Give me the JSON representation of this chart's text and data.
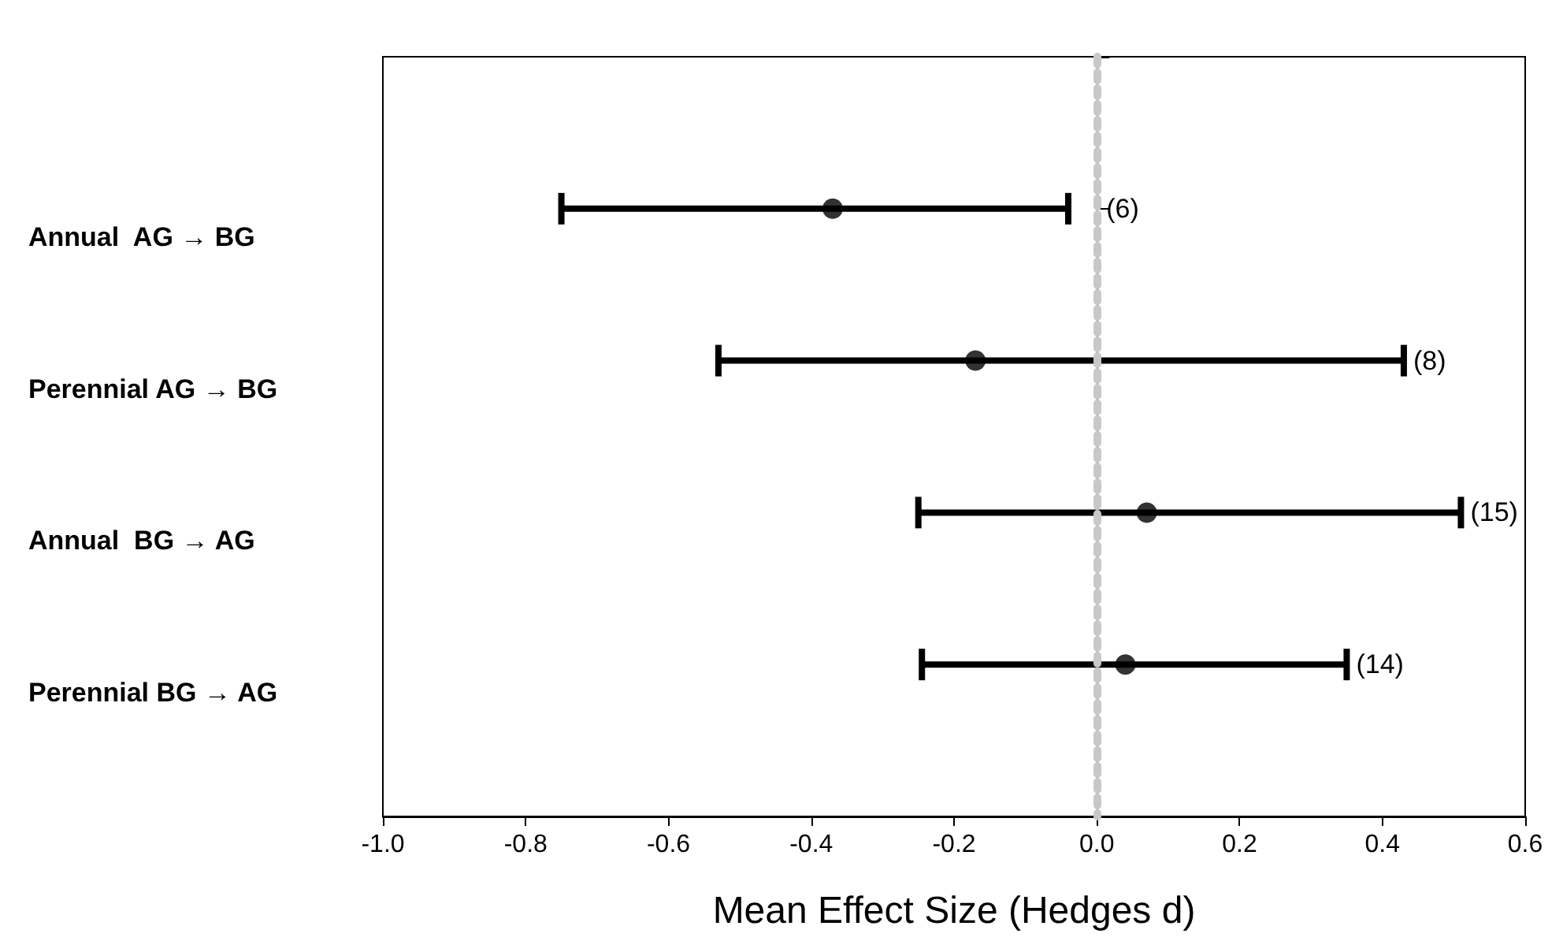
{
  "chart_data": {
    "type": "scatter",
    "orientation": "horizontal",
    "categories": [
      "Annual  AG → BG",
      "Perennial AG → BG",
      "Annual  BG → AG",
      "Perennial BG → AG"
    ],
    "values": [
      -0.37,
      -0.17,
      0.07,
      0.04
    ],
    "errors": [
      [
        -0.75,
        -0.04
      ],
      [
        -0.53,
        0.43
      ],
      [
        -0.25,
        0.51
      ],
      [
        -0.245,
        0.35
      ]
    ],
    "color": "#000000",
    "marker": "circle",
    "xlabel": "Mean Effect Size (Hedges d)",
    "xlim": [
      -1.0,
      0.6
    ],
    "xticks": [
      {
        "value": -1.0,
        "label": "-1.0"
      },
      {
        "value": -0.8,
        "label": "-0.8"
      },
      {
        "value": -0.6,
        "label": "-0.6"
      },
      {
        "value": -0.4,
        "label": "-0.4"
      },
      {
        "value": -0.2,
        "label": "-0.2"
      },
      {
        "value": 0.0,
        "label": "0.0"
      },
      {
        "value": 0.2,
        "label": "0.2"
      },
      {
        "value": 0.4,
        "label": "0.4"
      },
      {
        "value": 0.6,
        "label": "0.6"
      }
    ],
    "ref_lines": [
      {
        "axis": "x",
        "value": 0,
        "color": "#c8c8c8",
        "line_style": "dotted"
      }
    ],
    "annotations": [
      "(6)",
      "(8)",
      "(15)",
      "(14)"
    ],
    "grid": false
  }
}
